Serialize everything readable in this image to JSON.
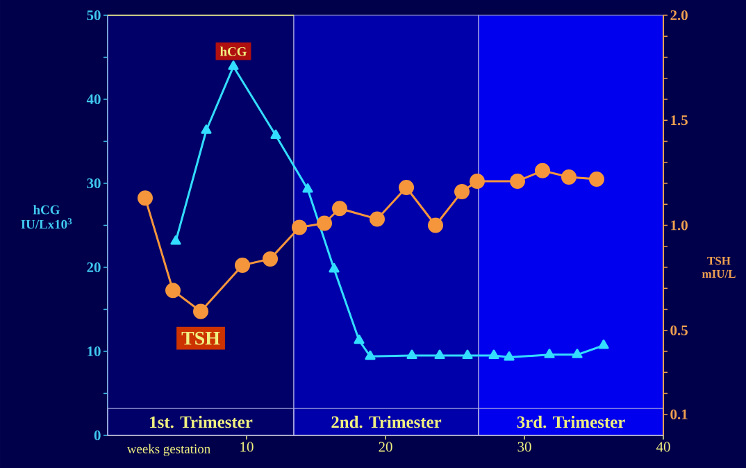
{
  "chart_data": {
    "type": "line",
    "xlabel": "weeks gestation",
    "ylabel": "hCG IU/Lx10$^{3}$",
    "y2label": "TSH mIU/L",
    "xlim": [
      0,
      40
    ],
    "xticks": [
      10,
      20,
      30,
      40
    ],
    "ylim": [
      0,
      50
    ],
    "yticks": [
      0,
      {
        "value": 5,
        "label": null
      },
      10,
      {
        "value": 15,
        "label": null
      },
      20,
      {
        "value": 25,
        "label": null
      },
      30,
      {
        "value": 35,
        "label": null
      },
      40,
      {
        "value": 45,
        "label": null
      },
      50
    ],
    "y2lim": [
      0,
      2.0
    ],
    "y2ticks": [
      {
        "value": 0.1,
        "label": "0.1"
      },
      {
        "value": 0.2,
        "label": null
      },
      {
        "value": 0.3,
        "label": null
      },
      {
        "value": 0.4,
        "label": null
      },
      {
        "value": 0.5,
        "label": "0.5"
      },
      {
        "value": 0.6,
        "label": null
      },
      {
        "value": 0.7,
        "label": null
      },
      {
        "value": 0.8,
        "label": null
      },
      {
        "value": 0.9,
        "label": null
      },
      {
        "value": 1.0,
        "label": "1.0"
      },
      {
        "value": 1.1,
        "label": null
      },
      {
        "value": 1.2,
        "label": null
      },
      {
        "value": 1.3,
        "label": null
      },
      {
        "value": 1.4,
        "label": null
      },
      {
        "value": 1.5,
        "label": "1.5"
      },
      {
        "value": 1.6,
        "label": null
      },
      {
        "value": 1.7,
        "label": null
      },
      {
        "value": 1.8,
        "label": null
      },
      {
        "value": 1.9,
        "label": null
      },
      {
        "value": 2.0,
        "label": "2.0"
      }
    ],
    "bands": [
      {
        "axis": "x",
        "from": 0,
        "to": 13.4,
        "label": "1st. Trimester",
        "color": "#000068"
      },
      {
        "axis": "x",
        "from": 13.4,
        "to": 26.7,
        "label": "2nd. Trimester",
        "color": "#0000aa"
      },
      {
        "axis": "x",
        "from": 26.7,
        "to": 40,
        "label": "3rd. Trimester",
        "color": "#0000ee"
      }
    ],
    "series": [
      {
        "name": "hCG",
        "color": "#33ddff",
        "marker": "triangle",
        "x": [
          4.9,
          7.1,
          9.05,
          12.1,
          14.4,
          16.3,
          18.1,
          18.9,
          21.9,
          23.9,
          25.9,
          27.8,
          28.9,
          31.8,
          33.8,
          35.7
        ],
        "values": [
          23.1,
          36.3,
          43.9,
          35.7,
          29.3,
          19.8,
          11.3,
          9.4,
          9.5,
          9.5,
          9.5,
          9.5,
          9.3,
          9.6,
          9.6,
          10.7
        ]
      },
      {
        "name": "TSH",
        "color": "#f5963c",
        "marker": "circle",
        "axis": "y2",
        "x": [
          2.7,
          4.7,
          6.7,
          9.7,
          11.7,
          13.8,
          15.6,
          16.7,
          19.4,
          21.5,
          23.6,
          25.5,
          26.6,
          29.5,
          31.3,
          33.2,
          35.2
        ],
        "values": [
          1.13,
          0.69,
          0.59,
          0.81,
          0.84,
          0.99,
          1.01,
          1.08,
          1.03,
          1.18,
          1.0,
          1.16,
          1.21,
          1.21,
          1.26,
          1.23,
          1.22
        ]
      }
    ]
  }
}
